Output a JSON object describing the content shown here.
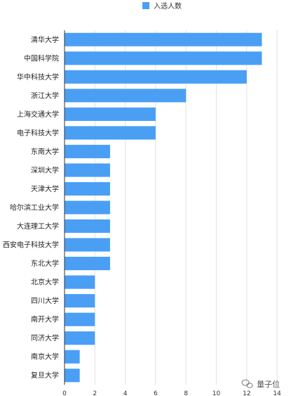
{
  "chart_data": {
    "type": "bar",
    "orientation": "horizontal",
    "categories": [
      "清华大学",
      "中国科学院",
      "华中科技大学",
      "浙江大学",
      "上海交通大学",
      "电子科技大学",
      "东南大学",
      "深圳大学",
      "天津大学",
      "哈尔滨工业大学",
      "大连理工大学",
      "西安电子科技大学",
      "东北大学",
      "北京大学",
      "四川大学",
      "南开大学",
      "同济大学",
      "南京大学",
      "复旦大学"
    ],
    "series": [
      {
        "name": "入选人数",
        "color": "#4a9ff5",
        "values": [
          13,
          13,
          12,
          8,
          6,
          6,
          3,
          3,
          3,
          3,
          3,
          3,
          3,
          2,
          2,
          2,
          2,
          1,
          1
        ]
      }
    ],
    "xlim": [
      0,
      14
    ],
    "xticks": [
      0,
      2,
      4,
      6,
      8,
      10,
      12,
      14
    ],
    "grid": true,
    "legend_position": "top-center"
  },
  "watermark": {
    "text": "量子位",
    "icon": "wechat-icon"
  }
}
